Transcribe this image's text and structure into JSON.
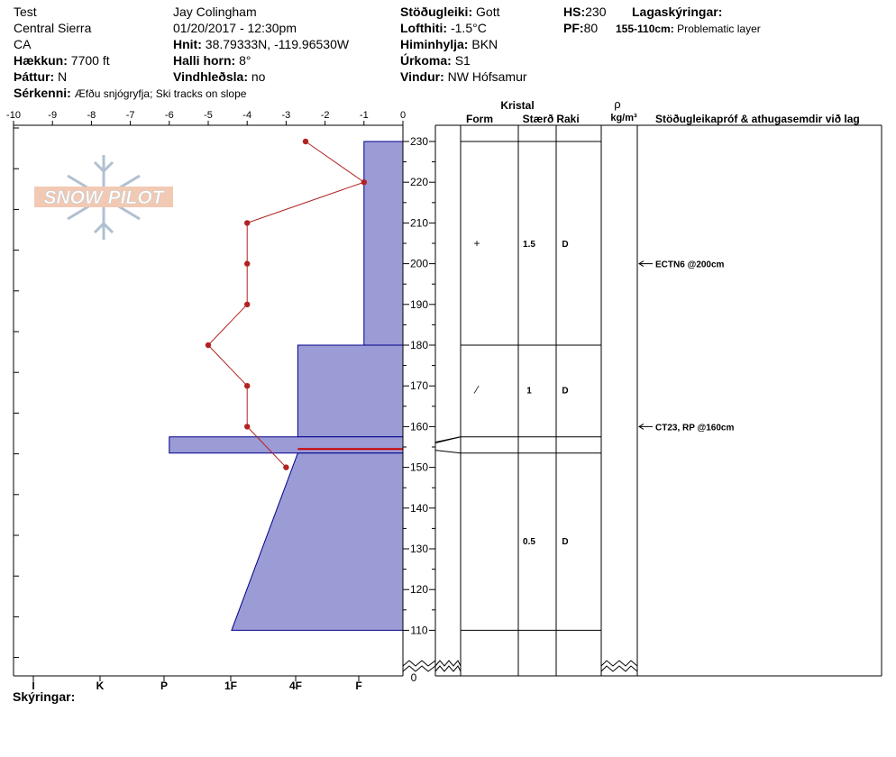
{
  "header": {
    "col1": {
      "line1": "Test",
      "line2": "Central Sierra",
      "line3": "CA",
      "elev_label": "Hækkun:",
      "elev_value": "7700 ft",
      "aspect_label": "Þáttur:",
      "aspect_value": "N",
      "features_label": "Sérkenni:",
      "features_value": "Æfðu snjógryfja;  Ski tracks on slope"
    },
    "col2": {
      "observer": "Jay Colingham",
      "datetime": "01/20/2017 - 12:30pm",
      "coords_label": "Hnit:",
      "coords_value": "38.79333N, -119.96530W",
      "slope_label": "Halli horn:",
      "slope_value": "8°",
      "wind_load_label": "Vindhleðsla:",
      "wind_load_value": "no"
    },
    "col3": {
      "stability_label": "Stöðugleiki:",
      "stability_value": "Gott",
      "airtemp_label": "Lofthiti:",
      "airtemp_value": "-1.5°C",
      "sky_label": "Himinhylja:",
      "sky_value": "BKN",
      "precip_label": "Úrkoma:",
      "precip_value": "S1",
      "wind_label": "Vindur:",
      "wind_value": "NW Hófsamur"
    },
    "col4": {
      "hs_label": "HS:",
      "hs_value": "230",
      "pf_label": "PF:",
      "pf_value": "80",
      "layers_label": "Lagaskýringar:",
      "layer_note_range": "155-110cm:",
      "layer_note_text": "Problematic layer"
    }
  },
  "logo_text": "SNOW PILOT",
  "legend_label": "Skýringar:",
  "crystal_header": "Kristal",
  "col_form": "Form",
  "col_size": "Stærð",
  "col_moisture": "Raki",
  "col_density_symbol": "ρ",
  "col_density_unit": "kg/m³",
  "col_tests": "Stöðugleikapróf & athugasemdir við lag",
  "chart_data": {
    "type": "line",
    "temp_axis": {
      "ticks": [
        "-10",
        "-9",
        "-8",
        "-7",
        "-6",
        "-5",
        "-4",
        "-3",
        "-2",
        "-1",
        "0"
      ],
      "range": [
        -10,
        0
      ]
    },
    "height_axis": {
      "ticks": [
        "230",
        "220",
        "210",
        "200",
        "190",
        "180",
        "170",
        "160",
        "150",
        "140",
        "130",
        "120",
        "110"
      ],
      "break_label": "0"
    },
    "hardness_axis": {
      "ticks": [
        "I",
        "K",
        "P",
        "1F",
        "4F",
        "F"
      ]
    },
    "temperature_profile": {
      "height_cm": [
        230,
        220,
        210,
        200,
        190,
        180,
        170,
        160,
        150
      ],
      "temp_c": [
        -2.5,
        -1,
        -4,
        -4,
        -4,
        -5,
        -4,
        -4,
        -3
      ]
    },
    "layers": [
      {
        "top": 230,
        "bottom": 180,
        "hardness_top": -1,
        "hardness_bottom": -1,
        "form_symbol": "+",
        "size": "1.5",
        "moisture": "D"
      },
      {
        "top": 180,
        "bottom": 157.5,
        "hardness_top": -2.7,
        "hardness_bottom": -2.7,
        "form_symbol": "⁄",
        "size": "1",
        "moisture": "D"
      },
      {
        "top": 157.5,
        "bottom": 153.5,
        "hardness_top": -6,
        "hardness_bottom": -6,
        "form_symbol": "",
        "size": "",
        "moisture": ""
      },
      {
        "top": 153.5,
        "bottom": 110,
        "hardness_top": -2.7,
        "hardness_bottom": -4.4,
        "form_symbol": "",
        "size": "0.5",
        "moisture": "D"
      }
    ],
    "stability_tests": [
      {
        "height_cm": 200,
        "text": "ECTN6 @200cm"
      },
      {
        "height_cm": 160,
        "text": "CT23, RP @160cm"
      }
    ],
    "colors": {
      "fill": "#9b9bd6",
      "stroke": "#00008b",
      "temp_line": "#b22222",
      "weak_layer_line": "#cc0000"
    }
  }
}
